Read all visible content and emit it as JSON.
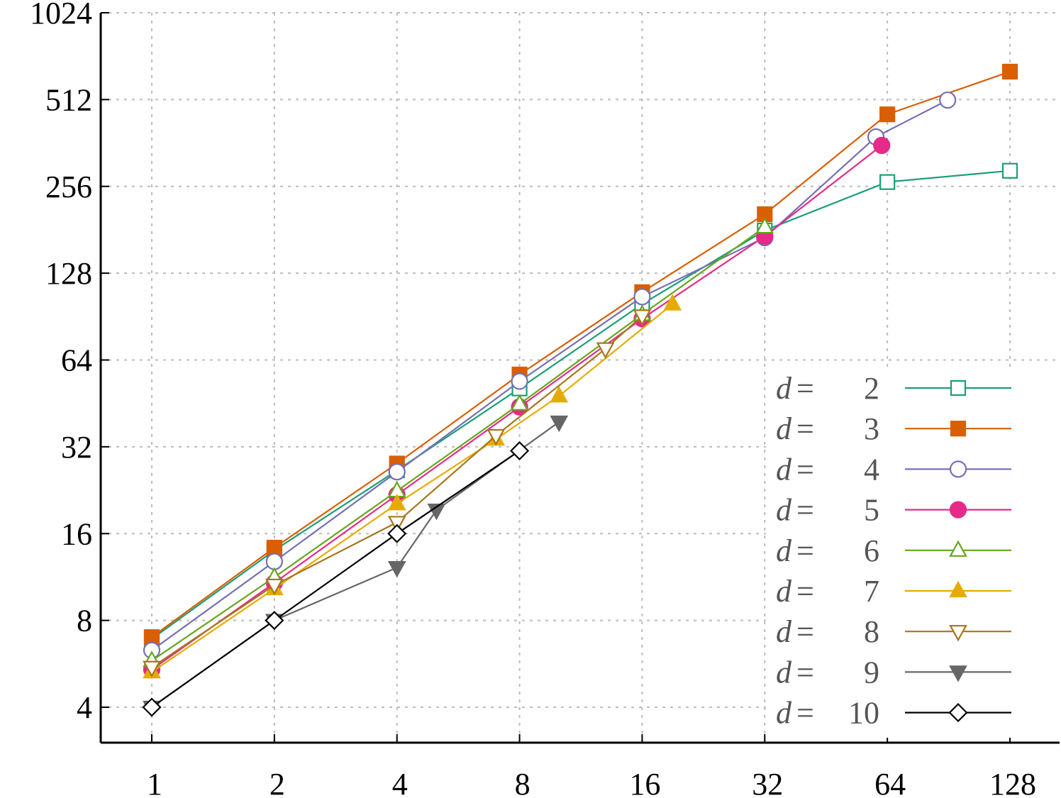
{
  "chart_data": {
    "type": "line",
    "title": "",
    "xlabel": "",
    "ylabel": "",
    "x_scale": "log2",
    "y_scale": "log2",
    "xlim": [
      0.83,
      168
    ],
    "ylim": [
      3.2,
      1024
    ],
    "x_ticks": [
      1,
      2,
      4,
      8,
      16,
      32,
      64,
      128
    ],
    "x_tick_labels": [
      "1",
      "2",
      "4",
      "8",
      "16",
      "32",
      "64",
      "128"
    ],
    "y_ticks": [
      4,
      8,
      16,
      32,
      64,
      128,
      256,
      512,
      1024
    ],
    "y_tick_labels": [
      "4",
      "8",
      "16",
      "32",
      "64",
      "128",
      "256",
      "512",
      "1024"
    ],
    "grid": true,
    "legend_position": "bottom-right",
    "series": [
      {
        "name": "d = 2",
        "label_prefix": "d",
        "label_eq": "=",
        "label_value": "2",
        "color": "#1b9e77",
        "marker": "square-open",
        "points": [
          [
            1,
            6.9
          ],
          [
            2,
            14.0
          ],
          [
            4,
            26.5
          ],
          [
            8,
            51
          ],
          [
            16,
            100
          ],
          [
            32,
            180
          ],
          [
            64,
            265
          ],
          [
            128,
            290
          ]
        ]
      },
      {
        "name": "d = 3",
        "label_prefix": "d",
        "label_eq": "=",
        "label_value": "3",
        "color": "#d95f02",
        "marker": "square-filled",
        "points": [
          [
            1,
            7.0
          ],
          [
            2,
            14.3
          ],
          [
            4,
            28.0
          ],
          [
            8,
            57
          ],
          [
            16,
            110
          ],
          [
            32,
            205
          ],
          [
            64,
            455
          ],
          [
            128,
            640
          ]
        ]
      },
      {
        "name": "d = 4",
        "label_prefix": "d",
        "label_eq": "=",
        "label_value": "4",
        "color": "#7570b3",
        "marker": "circle-open",
        "points": [
          [
            1,
            6.3
          ],
          [
            2,
            12.8
          ],
          [
            4,
            26.2
          ],
          [
            8,
            54
          ],
          [
            16,
            106
          ],
          [
            32,
            170
          ],
          [
            60,
            380
          ],
          [
            90,
            510
          ]
        ]
      },
      {
        "name": "d = 5",
        "label_prefix": "d",
        "label_eq": "=",
        "label_value": "5",
        "color": "#e7298a",
        "marker": "circle-filled",
        "points": [
          [
            1,
            5.4
          ],
          [
            2,
            10.8
          ],
          [
            4,
            21.8
          ],
          [
            8,
            44
          ],
          [
            16,
            89
          ],
          [
            32,
            172
          ],
          [
            62,
            355
          ]
        ]
      },
      {
        "name": "d = 6",
        "label_prefix": "d",
        "label_eq": "=",
        "label_value": "6",
        "color": "#66a61e",
        "marker": "triangle-open",
        "points": [
          [
            1,
            5.8
          ],
          [
            2,
            11.3
          ],
          [
            4,
            22.5
          ],
          [
            8,
            45
          ],
          [
            16,
            92
          ],
          [
            32,
            185
          ]
        ]
      },
      {
        "name": "d = 7",
        "label_prefix": "d",
        "label_eq": "=",
        "label_value": "7",
        "color": "#e6ab02",
        "marker": "triangle-filled",
        "points": [
          [
            1,
            5.3
          ],
          [
            2,
            10.3
          ],
          [
            4,
            20.3
          ],
          [
            7,
            34
          ],
          [
            10,
            48
          ],
          [
            19,
            100
          ]
        ]
      },
      {
        "name": "d = 8",
        "label_prefix": "d",
        "label_eq": "=",
        "label_value": "8",
        "color": "#a6761d",
        "marker": "triangle-down-open",
        "points": [
          [
            1,
            5.5
          ],
          [
            2,
            10.6
          ],
          [
            4,
            17.5
          ],
          [
            7,
            35
          ],
          [
            13,
            70
          ],
          [
            16,
            91
          ]
        ]
      },
      {
        "name": "d = 9",
        "label_prefix": "d",
        "label_eq": "=",
        "label_value": "9",
        "color": "#666666",
        "marker": "triangle-down-filled",
        "points": [
          [
            1,
            4.0
          ],
          [
            2,
            8.0
          ],
          [
            4,
            12.2
          ],
          [
            5,
            19.3
          ],
          [
            10,
            39
          ]
        ]
      },
      {
        "name": "d = 10",
        "label_prefix": "d",
        "label_eq": "=",
        "label_value": "10",
        "color": "#000000",
        "marker": "diamond-open",
        "points": [
          [
            1,
            4.0
          ],
          [
            2,
            8.0
          ],
          [
            4,
            16.0
          ],
          [
            8,
            31
          ]
        ]
      }
    ]
  }
}
